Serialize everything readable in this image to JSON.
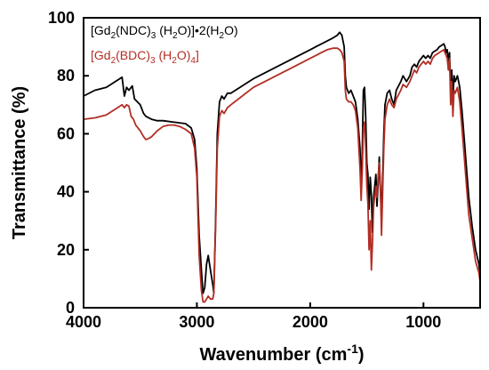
{
  "chart_data": {
    "type": "line",
    "xlabel": "Wavenumber (cm-1)",
    "xlabel_main": "Wavenumber (cm",
    "xlabel_sup": "-1",
    "xlabel_close": ")",
    "ylabel": "Transmittance (%)",
    "xlim": [
      4000,
      500
    ],
    "ylim": [
      0,
      100
    ],
    "x_reversed": true,
    "xticks": [
      4000,
      3000,
      2000,
      1000
    ],
    "xtick_labels": [
      "4000",
      "3000",
      "2000",
      "1000"
    ],
    "yticks": [
      0,
      20,
      40,
      60,
      80,
      100
    ],
    "ytick_labels": [
      "0",
      "20",
      "40",
      "60",
      "80",
      "100"
    ],
    "grid": false,
    "legend_position": "top-left",
    "series": [
      {
        "name": "[Gd2(NDC)3 (H2O)]•2(H2O)",
        "legend": {
          "a": "[Gd",
          "a_sub": "2",
          "b": "(NDC)",
          "b_sub": "3",
          "c": " (H",
          "c_sub": "2",
          "d": "O)]•2(H",
          "d_sub": "2",
          "e": "O)"
        },
        "color": "#000000",
        "points": [
          [
            4000,
            73
          ],
          [
            3900,
            75
          ],
          [
            3800,
            76
          ],
          [
            3700,
            78.5
          ],
          [
            3660,
            79.5
          ],
          [
            3640,
            73
          ],
          [
            3620,
            76
          ],
          [
            3600,
            75
          ],
          [
            3570,
            76.5
          ],
          [
            3550,
            72
          ],
          [
            3500,
            70
          ],
          [
            3470,
            67
          ],
          [
            3450,
            66
          ],
          [
            3400,
            65
          ],
          [
            3350,
            64.5
          ],
          [
            3300,
            64.5
          ],
          [
            3200,
            64
          ],
          [
            3100,
            63.5
          ],
          [
            3050,
            62
          ],
          [
            3020,
            58
          ],
          [
            3000,
            48
          ],
          [
            2980,
            25
          ],
          [
            2960,
            13
          ],
          [
            2945,
            5
          ],
          [
            2930,
            7
          ],
          [
            2915,
            15
          ],
          [
            2900,
            18
          ],
          [
            2880,
            13
          ],
          [
            2860,
            8
          ],
          [
            2850,
            5
          ],
          [
            2835,
            30
          ],
          [
            2820,
            60
          ],
          [
            2800,
            71
          ],
          [
            2780,
            73
          ],
          [
            2760,
            72
          ],
          [
            2730,
            74
          ],
          [
            2700,
            74
          ],
          [
            2600,
            76.5
          ],
          [
            2500,
            79
          ],
          [
            2400,
            81
          ],
          [
            2300,
            83
          ],
          [
            2200,
            85
          ],
          [
            2100,
            87
          ],
          [
            2000,
            89
          ],
          [
            1950,
            90
          ],
          [
            1900,
            91
          ],
          [
            1850,
            92
          ],
          [
            1800,
            93
          ],
          [
            1760,
            94
          ],
          [
            1740,
            95
          ],
          [
            1720,
            94
          ],
          [
            1700,
            90
          ],
          [
            1690,
            80
          ],
          [
            1680,
            76
          ],
          [
            1660,
            74
          ],
          [
            1640,
            75
          ],
          [
            1620,
            73
          ],
          [
            1600,
            71
          ],
          [
            1580,
            65
          ],
          [
            1560,
            55
          ],
          [
            1550,
            40
          ],
          [
            1540,
            55
          ],
          [
            1530,
            75
          ],
          [
            1520,
            76
          ],
          [
            1510,
            66
          ],
          [
            1500,
            50
          ],
          [
            1490,
            46
          ],
          [
            1480,
            34
          ],
          [
            1470,
            45
          ],
          [
            1460,
            39
          ],
          [
            1450,
            26
          ],
          [
            1440,
            38
          ],
          [
            1420,
            46
          ],
          [
            1410,
            35
          ],
          [
            1400,
            43
          ],
          [
            1390,
            52
          ],
          [
            1380,
            40
          ],
          [
            1370,
            30
          ],
          [
            1360,
            45
          ],
          [
            1350,
            60
          ],
          [
            1340,
            70
          ],
          [
            1320,
            74
          ],
          [
            1300,
            75
          ],
          [
            1280,
            72
          ],
          [
            1260,
            70
          ],
          [
            1240,
            75
          ],
          [
            1200,
            78
          ],
          [
            1180,
            80
          ],
          [
            1150,
            78
          ],
          [
            1120,
            80
          ],
          [
            1100,
            83
          ],
          [
            1080,
            84
          ],
          [
            1060,
            83
          ],
          [
            1040,
            85
          ],
          [
            1000,
            87
          ],
          [
            980,
            86
          ],
          [
            960,
            87
          ],
          [
            940,
            86
          ],
          [
            920,
            88
          ],
          [
            900,
            88.5
          ],
          [
            880,
            89
          ],
          [
            860,
            90
          ],
          [
            840,
            90.5
          ],
          [
            820,
            91
          ],
          [
            810,
            90
          ],
          [
            800,
            88
          ],
          [
            790,
            89
          ],
          [
            780,
            85
          ],
          [
            770,
            88
          ],
          [
            760,
            75
          ],
          [
            750,
            82
          ],
          [
            740,
            72
          ],
          [
            730,
            80
          ],
          [
            720,
            78
          ],
          [
            700,
            80
          ],
          [
            680,
            76
          ],
          [
            660,
            68
          ],
          [
            640,
            58
          ],
          [
            620,
            48
          ],
          [
            600,
            38
          ],
          [
            570,
            28
          ],
          [
            540,
            20
          ],
          [
            510,
            15
          ],
          [
            500,
            12
          ]
        ]
      },
      {
        "name": "[Gd2(BDC)3 (H2O)4]",
        "legend": {
          "a": "[Gd",
          "a_sub": "2",
          "b": "(BDC)",
          "b_sub": "3",
          "c": " (H",
          "c_sub": "2",
          "d": "O)",
          "d_sub": "4",
          "e": "]"
        },
        "color": "#b22e24",
        "points": [
          [
            4000,
            65
          ],
          [
            3900,
            65.5
          ],
          [
            3800,
            66.5
          ],
          [
            3700,
            69
          ],
          [
            3660,
            70
          ],
          [
            3640,
            69
          ],
          [
            3620,
            70
          ],
          [
            3600,
            69.5
          ],
          [
            3580,
            66
          ],
          [
            3560,
            65
          ],
          [
            3540,
            63
          ],
          [
            3500,
            61
          ],
          [
            3470,
            59
          ],
          [
            3450,
            58
          ],
          [
            3420,
            58.5
          ],
          [
            3400,
            59
          ],
          [
            3350,
            61
          ],
          [
            3300,
            62.5
          ],
          [
            3250,
            63
          ],
          [
            3200,
            63
          ],
          [
            3150,
            62.5
          ],
          [
            3100,
            61.5
          ],
          [
            3050,
            60
          ],
          [
            3020,
            55
          ],
          [
            3000,
            45
          ],
          [
            2980,
            18
          ],
          [
            2960,
            6
          ],
          [
            2945,
            2
          ],
          [
            2930,
            2
          ],
          [
            2915,
            3
          ],
          [
            2900,
            4
          ],
          [
            2880,
            3
          ],
          [
            2860,
            3
          ],
          [
            2850,
            5
          ],
          [
            2835,
            28
          ],
          [
            2820,
            55
          ],
          [
            2800,
            66
          ],
          [
            2780,
            68
          ],
          [
            2760,
            67
          ],
          [
            2730,
            69
          ],
          [
            2700,
            70
          ],
          [
            2600,
            73
          ],
          [
            2500,
            76
          ],
          [
            2400,
            78
          ],
          [
            2300,
            80
          ],
          [
            2200,
            82
          ],
          [
            2100,
            84
          ],
          [
            2000,
            86
          ],
          [
            1950,
            87
          ],
          [
            1900,
            88
          ],
          [
            1850,
            89
          ],
          [
            1800,
            89.5
          ],
          [
            1760,
            89.5
          ],
          [
            1740,
            89
          ],
          [
            1720,
            88
          ],
          [
            1700,
            85
          ],
          [
            1690,
            75
          ],
          [
            1680,
            72
          ],
          [
            1660,
            71
          ],
          [
            1640,
            71
          ],
          [
            1620,
            70
          ],
          [
            1600,
            68
          ],
          [
            1580,
            62
          ],
          [
            1560,
            48
          ],
          [
            1550,
            37
          ],
          [
            1540,
            48
          ],
          [
            1530,
            62
          ],
          [
            1520,
            64
          ],
          [
            1510,
            55
          ],
          [
            1500,
            42
          ],
          [
            1490,
            36
          ],
          [
            1480,
            20
          ],
          [
            1470,
            30
          ],
          [
            1460,
            13
          ],
          [
            1450,
            22
          ],
          [
            1440,
            35
          ],
          [
            1420,
            42
          ],
          [
            1410,
            38
          ],
          [
            1400,
            45
          ],
          [
            1390,
            50
          ],
          [
            1380,
            42
          ],
          [
            1370,
            25
          ],
          [
            1360,
            40
          ],
          [
            1350,
            55
          ],
          [
            1340,
            65
          ],
          [
            1320,
            70
          ],
          [
            1300,
            72
          ],
          [
            1280,
            70
          ],
          [
            1260,
            69
          ],
          [
            1240,
            72
          ],
          [
            1200,
            75
          ],
          [
            1180,
            77
          ],
          [
            1150,
            76
          ],
          [
            1120,
            78
          ],
          [
            1100,
            80
          ],
          [
            1080,
            82
          ],
          [
            1060,
            81
          ],
          [
            1040,
            83
          ],
          [
            1000,
            85
          ],
          [
            980,
            84
          ],
          [
            960,
            85
          ],
          [
            940,
            84
          ],
          [
            920,
            86
          ],
          [
            900,
            87
          ],
          [
            880,
            87.5
          ],
          [
            860,
            88
          ],
          [
            840,
            88.5
          ],
          [
            820,
            89
          ],
          [
            810,
            88
          ],
          [
            800,
            87
          ],
          [
            790,
            86
          ],
          [
            780,
            82
          ],
          [
            770,
            86
          ],
          [
            760,
            70
          ],
          [
            750,
            78
          ],
          [
            740,
            66
          ],
          [
            730,
            75
          ],
          [
            720,
            74
          ],
          [
            700,
            76
          ],
          [
            680,
            71
          ],
          [
            660,
            62
          ],
          [
            640,
            52
          ],
          [
            620,
            42
          ],
          [
            600,
            32
          ],
          [
            570,
            24
          ],
          [
            540,
            16
          ],
          [
            510,
            12
          ],
          [
            500,
            9
          ]
        ]
      }
    ]
  }
}
